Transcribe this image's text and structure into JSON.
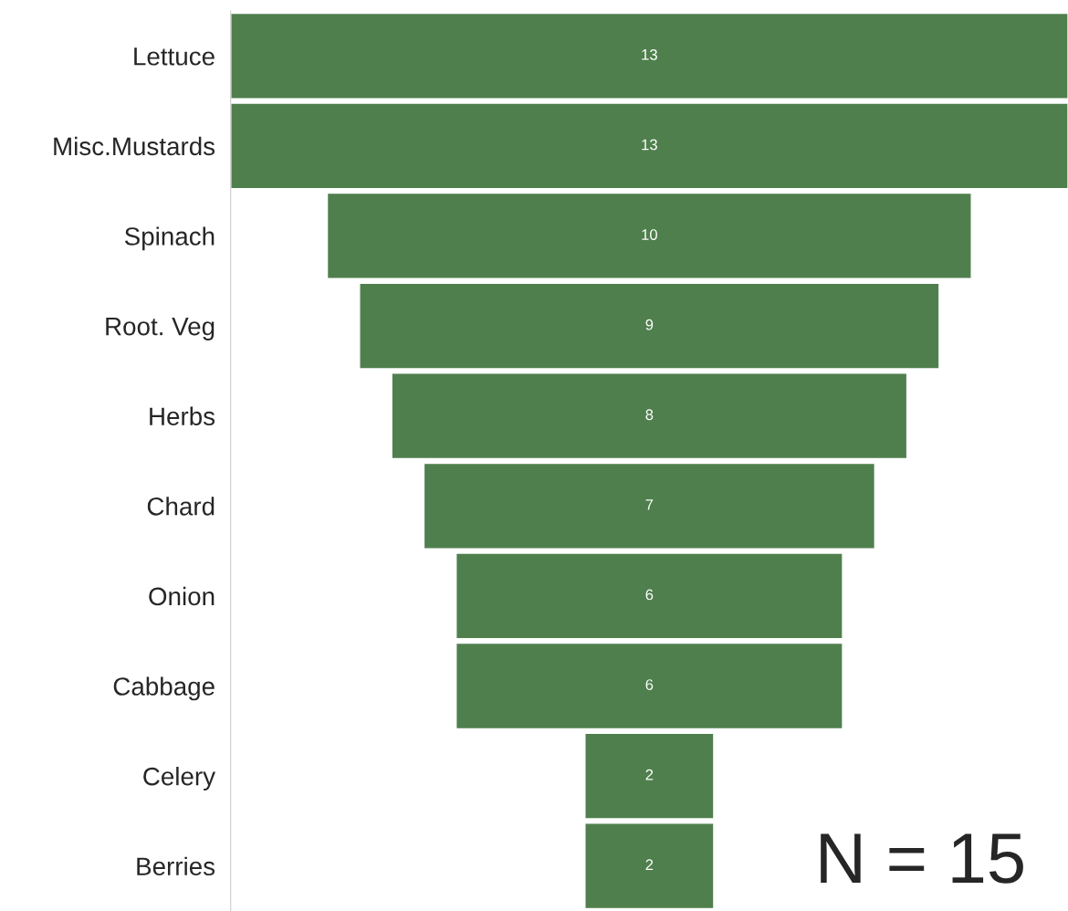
{
  "chart_data": {
    "type": "other",
    "categories": [
      "Lettuce",
      "Misc.Mustards",
      "Spinach",
      "Root. Veg",
      "Herbs",
      "Chard",
      "Onion",
      "Cabbage",
      "Celery",
      "Berries"
    ],
    "values": [
      13,
      13,
      10,
      9,
      8,
      7,
      6,
      6,
      2,
      2
    ],
    "color": "#4f7f4d",
    "data_labels": true,
    "annotations": [
      "N = 15"
    ]
  }
}
